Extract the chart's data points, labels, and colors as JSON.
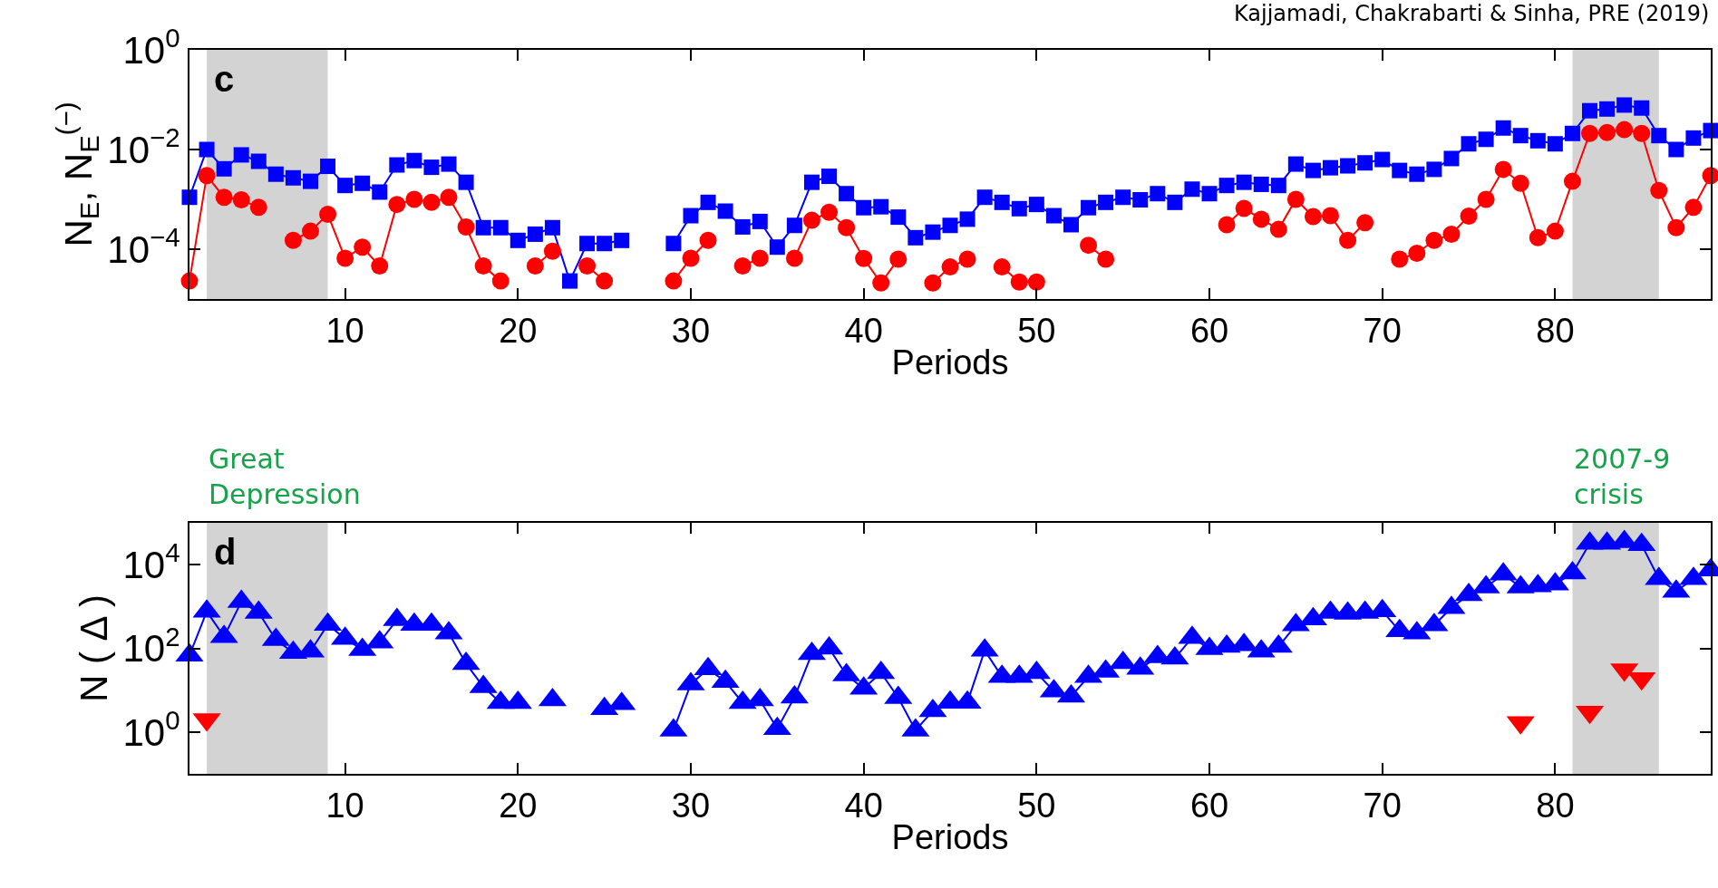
{
  "chart_data": [
    {
      "type": "line",
      "xlabel": "Periods",
      "ylabel": "N$_{E}$, N$_{E}$$^{(−)}$",
      "log": "y",
      "grid": false,
      "annotations": [
        "c",
        "Kajjamadi, Chakrabarti & Sinha, PRE (2019)"
      ],
      "xlim": [
        1,
        89
      ],
      "xticks": [
        10,
        20,
        30,
        40,
        50,
        60,
        70,
        80
      ],
      "ylim": [
        1e-05,
        1
      ],
      "yticks": [
        {
          "value": 1,
          "label": "10$^{0}$"
        },
        {
          "value": 0.01,
          "label": "10$^{−2}$"
        },
        {
          "value": 0.0001,
          "label": "10$^{−4}$"
        }
      ],
      "bands": [
        {
          "axis": "x",
          "from": 2,
          "to": 9,
          "color": "#d3d3d3"
        },
        {
          "axis": "x",
          "from": 81,
          "to": 86,
          "color": "#d3d3d3"
        }
      ],
      "x": [
        1,
        2,
        3,
        4,
        5,
        6,
        7,
        8,
        9,
        10,
        11,
        12,
        13,
        14,
        15,
        16,
        17,
        18,
        19,
        20,
        21,
        22,
        23,
        24,
        25,
        26,
        27,
        28,
        29,
        30,
        31,
        32,
        33,
        34,
        35,
        36,
        37,
        38,
        39,
        40,
        41,
        42,
        43,
        44,
        45,
        46,
        47,
        48,
        49,
        50,
        51,
        52,
        53,
        54,
        55,
        56,
        57,
        58,
        59,
        60,
        61,
        62,
        63,
        64,
        65,
        66,
        67,
        68,
        69,
        70,
        71,
        72,
        73,
        74,
        75,
        76,
        77,
        78,
        79,
        80,
        81,
        82,
        83,
        84,
        85,
        86,
        87,
        88,
        89
      ],
      "series": [
        {
          "color": "#0000ff",
          "marker": "square",
          "values": [
            0.0011,
            0.01,
            0.0041,
            0.0078,
            0.0058,
            0.0032,
            0.0027,
            0.0023,
            0.0046,
            0.0019,
            0.0021,
            0.0014,
            0.0049,
            0.006,
            0.0044,
            0.0051,
            0.0022,
            0.00027,
            0.00027,
            0.00015,
            0.0002,
            0.00027,
            2.3e-05,
            0.00013,
            0.00013,
            0.00015,
            null,
            null,
            0.00013,
            0.00047,
            0.00087,
            0.00058,
            0.00028,
            0.00036,
            0.00011,
            0.0003,
            0.0022,
            0.0029,
            0.0013,
            0.00068,
            0.00071,
            0.00044,
            0.00017,
            0.00022,
            0.0003,
            0.0004,
            0.0011,
            0.00087,
            0.00065,
            0.00079,
            0.00047,
            0.00031,
            0.00068,
            0.00087,
            0.0011,
            0.00098,
            0.0013,
            0.00087,
            0.0016,
            0.0013,
            0.0019,
            0.0022,
            0.002,
            0.0019,
            0.0051,
            0.0038,
            0.0043,
            0.0047,
            0.0054,
            0.0063,
            0.0038,
            0.0032,
            0.004,
            0.0066,
            0.013,
            0.016,
            0.027,
            0.019,
            0.015,
            0.013,
            0.021,
            0.06,
            0.065,
            0.078,
            0.068,
            0.019,
            0.01,
            0.017,
            0.024
          ]
        },
        {
          "color": "#ff0000",
          "marker": "circle",
          "values": [
            2.3e-05,
            0.003,
            0.0011,
            0.00098,
            0.00069,
            null,
            0.00015,
            0.00023,
            0.0005,
            6.6e-05,
            0.00011,
            4.6e-05,
            0.00079,
            0.001,
            0.00087,
            0.0011,
            0.00028,
            4.6e-05,
            2.3e-05,
            null,
            4.6e-05,
            9.1e-05,
            null,
            4.6e-05,
            2.3e-05,
            null,
            null,
            null,
            2.3e-05,
            6.6e-05,
            0.00015,
            null,
            4.6e-05,
            6.6e-05,
            null,
            6.6e-05,
            0.00038,
            0.00055,
            0.00027,
            6.5e-05,
            2.1e-05,
            6.3e-05,
            null,
            2.1e-05,
            4.4e-05,
            6.3e-05,
            null,
            4.4e-05,
            2.2e-05,
            2.2e-05,
            null,
            null,
            0.00012,
            6.3e-05,
            null,
            null,
            null,
            null,
            null,
            null,
            0.00031,
            0.00066,
            0.0004,
            0.00025,
            0.001,
            0.00045,
            0.00047,
            0.00015,
            0.00034,
            null,
            6.3e-05,
            8.3e-05,
            0.00015,
            0.0002,
            0.00046,
            0.001,
            0.004,
            0.0021,
            0.00017,
            0.00023,
            0.0023,
            0.021,
            0.022,
            0.025,
            0.021,
            0.0015,
            0.00027,
            0.00069,
            0.003
          ]
        }
      ]
    },
    {
      "type": "line",
      "xlabel": "Periods",
      "ylabel": "N ( Δ )",
      "log": "y",
      "grid": false,
      "annotations": [
        "d"
      ],
      "xlim": [
        1,
        89
      ],
      "xticks": [
        10,
        20,
        30,
        40,
        50,
        60,
        70,
        80
      ],
      "ylim": [
        0.1,
        100000
      ],
      "yticks": [
        {
          "value": 1,
          "label": "10$^{0}$"
        },
        {
          "value": 100,
          "label": "10$^{2}$"
        },
        {
          "value": 10000,
          "label": "10$^{4}$"
        }
      ],
      "bands": [
        {
          "axis": "x",
          "from": 2,
          "to": 9,
          "color": "#d3d3d3",
          "label": "Great\nDepression"
        },
        {
          "axis": "x",
          "from": 81,
          "to": 86,
          "color": "#d3d3d3",
          "label": "2007-9\ncrisis"
        }
      ],
      "x": [
        1,
        2,
        3,
        4,
        5,
        6,
        7,
        8,
        9,
        10,
        11,
        12,
        13,
        14,
        15,
        16,
        17,
        18,
        19,
        20,
        21,
        22,
        23,
        24,
        25,
        26,
        27,
        28,
        29,
        30,
        31,
        32,
        33,
        34,
        35,
        36,
        37,
        38,
        39,
        40,
        41,
        42,
        43,
        44,
        45,
        46,
        47,
        48,
        49,
        50,
        51,
        52,
        53,
        54,
        55,
        56,
        57,
        58,
        59,
        60,
        61,
        62,
        63,
        64,
        65,
        66,
        67,
        68,
        69,
        70,
        71,
        72,
        73,
        74,
        75,
        76,
        77,
        78,
        79,
        80,
        81,
        82,
        83,
        84,
        85,
        86,
        87,
        88,
        89
      ],
      "series": [
        {
          "color": "#0000ff",
          "marker": "triangle",
          "values": [
            68,
            760,
            190,
            1300,
            720,
            160,
            79,
            85,
            370,
            170,
            93,
            140,
            480,
            370,
            370,
            230,
            43,
            12,
            5,
            5,
            null,
            5.8,
            null,
            null,
            3.6,
            4.7,
            null,
            null,
            1.1,
            14,
            32,
            16,
            5,
            5.8,
            1.2,
            6.8,
            74,
            100,
            23,
            11,
            26,
            6.6,
            1.1,
            3.2,
            5.1,
            5.1,
            89,
            21,
            21,
            26,
            9.5,
            7.1,
            21,
            28,
            45,
            33,
            62,
            58,
            180,
            98,
            110,
            120,
            85,
            110,
            360,
            500,
            720,
            680,
            720,
            780,
            260,
            230,
            360,
            930,
            1900,
            2900,
            5900,
            2900,
            3100,
            3400,
            6300,
            32000,
            32000,
            35000,
            30000,
            4600,
            2300,
            4600,
            7400
          ]
        },
        {
          "type": "scatter",
          "color": "#ff0000",
          "marker": "triangle-down",
          "values": [
            null,
            2.0,
            null,
            null,
            null,
            null,
            null,
            null,
            null,
            null,
            null,
            null,
            null,
            null,
            null,
            null,
            null,
            null,
            null,
            null,
            null,
            null,
            null,
            null,
            null,
            null,
            null,
            null,
            null,
            null,
            null,
            null,
            null,
            null,
            null,
            null,
            null,
            null,
            null,
            null,
            null,
            null,
            null,
            null,
            null,
            null,
            null,
            null,
            null,
            null,
            null,
            null,
            null,
            null,
            null,
            null,
            null,
            null,
            null,
            null,
            null,
            null,
            null,
            null,
            null,
            null,
            null,
            null,
            null,
            null,
            null,
            null,
            null,
            null,
            null,
            null,
            null,
            1.7,
            null,
            null,
            null,
            3.0,
            null,
            31,
            19,
            null,
            null,
            null,
            null
          ]
        }
      ]
    }
  ]
}
